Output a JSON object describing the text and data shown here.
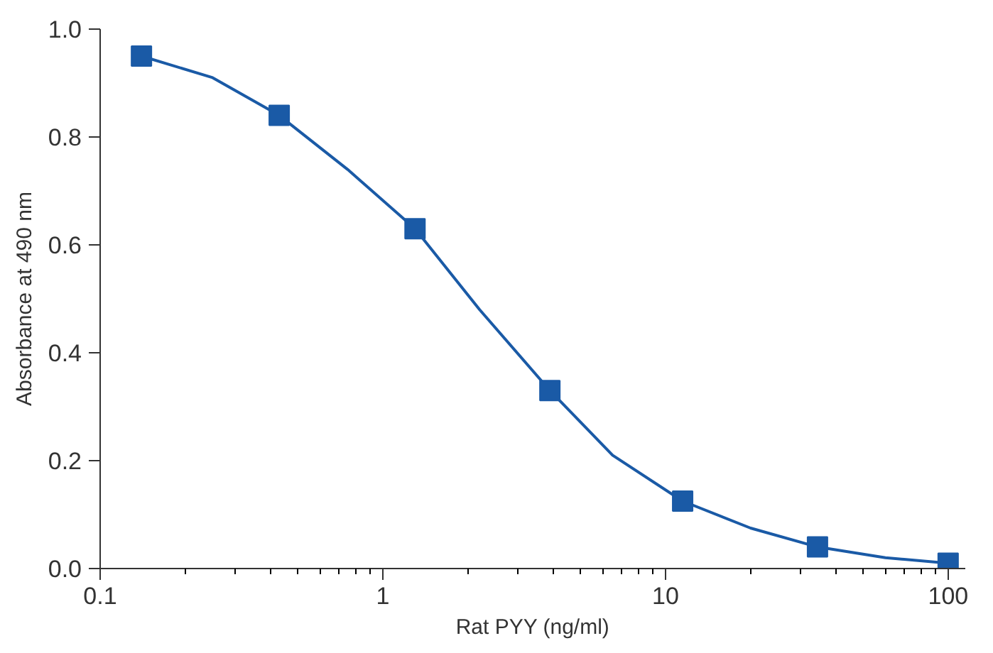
{
  "chart_data": {
    "type": "scatter",
    "xlabel": "Rat PYY (ng/ml)",
    "ylabel": "Absorbance at 490 nm",
    "log": "x",
    "marker": "square",
    "grid": false,
    "xlim": [
      0.1,
      115
    ],
    "xticks": [
      {
        "value": 0.1,
        "label": "0.1"
      },
      {
        "value": 1,
        "label": "1"
      },
      {
        "value": 10,
        "label": "10"
      },
      {
        "value": 100,
        "label": "100"
      }
    ],
    "ylim": [
      0,
      1.0
    ],
    "yticks": [
      {
        "value": 0,
        "label": "0.0"
      },
      {
        "value": 0.2,
        "label": "0.2"
      },
      {
        "value": 0.4,
        "label": "0.4"
      },
      {
        "value": 0.6,
        "label": "0.6"
      },
      {
        "value": 0.8,
        "label": "0.8"
      },
      {
        "value": 1.0,
        "label": "1.0"
      }
    ],
    "series": [
      {
        "type": "line",
        "color": "#1a5aa6",
        "line_style": "solid",
        "marker": "none",
        "x": [
          0.14,
          0.25,
          0.43,
          0.75,
          1.3,
          2.2,
          3.9,
          6.5,
          11.5,
          20,
          34.5,
          60,
          100
        ],
        "values": [
          0.95,
          0.91,
          0.84,
          0.74,
          0.63,
          0.48,
          0.33,
          0.21,
          0.125,
          0.075,
          0.04,
          0.02,
          0.01
        ]
      },
      {
        "color": "#1a5aa6",
        "x": [
          0.14,
          0.43,
          1.3,
          3.9,
          11.5,
          34.5,
          100
        ],
        "values": [
          0.95,
          0.84,
          0.63,
          0.33,
          0.125,
          0.04,
          0.01
        ]
      }
    ]
  }
}
